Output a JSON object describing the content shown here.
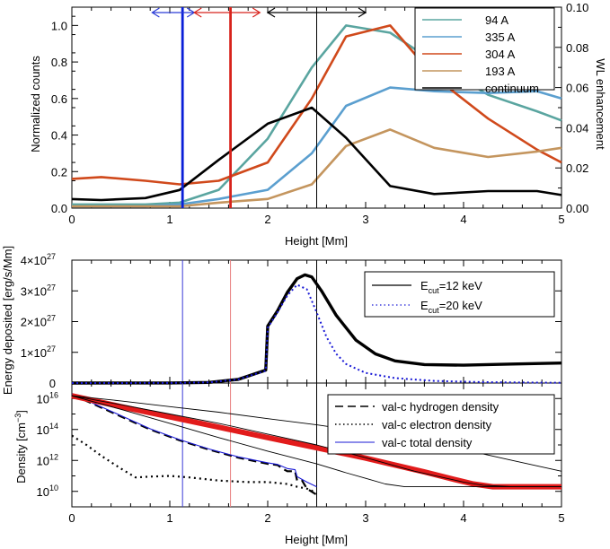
{
  "chart_data": [
    {
      "type": "line",
      "xlabel": "Height [Mm]",
      "ylabel": "Normalized counts",
      "y2label": "WL enhancement",
      "xlim": [
        0,
        5
      ],
      "ylim": [
        0,
        1.1
      ],
      "y2lim": [
        0,
        0.1
      ],
      "xticks": [
        "0",
        "1",
        "2",
        "3",
        "4",
        "5"
      ],
      "yticks": [
        "0.0",
        "0.2",
        "0.4",
        "0.6",
        "0.8",
        "1.0"
      ],
      "y2ticks": [
        "0.00",
        "0.02",
        "0.04",
        "0.06",
        "0.08",
        "0.10"
      ],
      "legend_position": "top-right",
      "series": [
        {
          "name": "94 A",
          "color": "#5aa5a0",
          "axis": "left",
          "x": [
            0,
            0.3,
            0.75,
            1.1,
            1.5,
            2.0,
            2.45,
            2.8,
            3.25,
            3.7,
            4.25,
            4.75,
            5.0
          ],
          "y": [
            0.02,
            0.02,
            0.02,
            0.03,
            0.1,
            0.38,
            0.77,
            1.0,
            0.96,
            0.8,
            0.62,
            0.53,
            0.48
          ]
        },
        {
          "name": "335 A",
          "color": "#5b9fcf",
          "axis": "left",
          "x": [
            0,
            0.3,
            0.75,
            1.1,
            1.5,
            2.0,
            2.45,
            2.8,
            3.25,
            3.7,
            4.25,
            4.75,
            5.0
          ],
          "y": [
            0.01,
            0.01,
            0.01,
            0.02,
            0.05,
            0.1,
            0.3,
            0.56,
            0.66,
            0.64,
            0.63,
            0.64,
            0.6
          ]
        },
        {
          "name": "304 A",
          "color": "#d0491b",
          "axis": "left",
          "x": [
            0,
            0.3,
            0.75,
            1.1,
            1.5,
            2.0,
            2.45,
            2.8,
            3.25,
            3.7,
            4.25,
            4.75,
            5.0
          ],
          "y": [
            0.16,
            0.17,
            0.15,
            0.13,
            0.15,
            0.25,
            0.6,
            0.94,
            1.0,
            0.72,
            0.49,
            0.32,
            0.25
          ]
        },
        {
          "name": "193 A",
          "color": "#c4955e",
          "axis": "left",
          "x": [
            0,
            0.3,
            0.75,
            1.1,
            1.5,
            2.0,
            2.45,
            2.8,
            3.25,
            3.7,
            4.25,
            4.75,
            5.0
          ],
          "y": [
            0.01,
            0.01,
            0.01,
            0.01,
            0.03,
            0.05,
            0.13,
            0.34,
            0.43,
            0.33,
            0.28,
            0.31,
            0.33
          ]
        },
        {
          "name": "continuum",
          "color": "#000000",
          "axis": "right",
          "x": [
            0,
            0.3,
            0.75,
            1.1,
            1.5,
            2.0,
            2.45,
            2.8,
            3.25,
            3.7,
            4.25,
            4.75,
            5.0
          ],
          "y": [
            0.0045,
            0.004,
            0.005,
            0.009,
            0.024,
            0.042,
            0.05,
            0.035,
            0.011,
            0.007,
            0.0085,
            0.0085,
            0.0065
          ]
        }
      ],
      "vertical_lines": [
        {
          "x": 1.13,
          "color": "#0a1fd8"
        },
        {
          "x": 1.62,
          "color": "#d8231c"
        },
        {
          "x": 2.5,
          "color": "#000000"
        }
      ],
      "arrows": [
        {
          "x1": 0.82,
          "x2": 1.25,
          "color": "#2a3bd6"
        },
        {
          "x1": 1.25,
          "x2": 1.92,
          "color": "#d8231c"
        },
        {
          "x1": 2.0,
          "x2": 3.0,
          "color": "#000000"
        }
      ]
    },
    {
      "type": "line",
      "ylabel": "Energy deposited [erg/s/Mm]",
      "xlim": [
        0,
        5
      ],
      "ylim": [
        0,
        4e+27
      ],
      "yticks": [
        {
          "mant": "0",
          "exp": ""
        },
        {
          "mant": "1×10",
          "exp": "27"
        },
        {
          "mant": "2×10",
          "exp": "27"
        },
        {
          "mant": "3×10",
          "exp": "27"
        },
        {
          "mant": "4×10",
          "exp": "27"
        }
      ],
      "legend_position": "top-right",
      "series": [
        {
          "name": "E",
          "sub": "cut",
          "suffix": "=12 keV",
          "style": "solid",
          "color": "#000000",
          "x": [
            0,
            1.0,
            1.4,
            1.7,
            1.98,
            2.0,
            2.1,
            2.2,
            2.3,
            2.38,
            2.45,
            2.55,
            2.7,
            2.9,
            3.1,
            3.3,
            3.6,
            4.0,
            4.5,
            5.0
          ],
          "y": [
            0,
            3e+24,
            2e+25,
            1.2e+26,
            4.2e+26,
            1.85e+27,
            2.35e+27,
            2.95e+27,
            3.4e+27,
            3.52e+27,
            3.45e+27,
            3e+27,
            2.2e+27,
            1.4e+27,
            9.5e+26,
            7.2e+26,
            6e+26,
            5.8e+26,
            6.2e+26,
            6.5e+26
          ]
        },
        {
          "name": "E",
          "sub": "cut",
          "suffix": "=20 keV",
          "style": "dotted",
          "color": "#1a1ad6",
          "x": [
            0,
            1.0,
            1.4,
            1.7,
            1.98,
            2.0,
            2.1,
            2.2,
            2.3,
            2.4,
            2.5,
            2.6,
            2.7,
            2.8,
            3.0,
            3.3,
            3.7,
            4.2,
            5.0
          ],
          "y": [
            0,
            3e+24,
            2e+25,
            1.2e+26,
            4e+26,
            1.8e+27,
            2.3e+27,
            2.85e+27,
            3.2e+27,
            3.05e+27,
            2.3e+27,
            1.5e+27,
            9.5e+26,
            6.2e+26,
            3.3e+26,
            1.6e+26,
            7e+25,
            3e+25,
            1e+25
          ]
        }
      ],
      "vertical_lines": [
        {
          "x": 1.13,
          "color": "#3a3ad6"
        },
        {
          "x": 1.62,
          "color": "#e87f7f"
        },
        {
          "x": 2.5,
          "color": "#000000"
        }
      ]
    },
    {
      "type": "line",
      "xlabel": "Height [Mm]",
      "ylabel": "Density [cm",
      "ylabel_sup": "−3",
      "ylabel_suffix": "]",
      "xlim": [
        0,
        5
      ],
      "ylim": [
        1000000000.0,
        1e+17
      ],
      "yscale": "log",
      "xticks": [
        "0",
        "1",
        "2",
        "3",
        "4",
        "5"
      ],
      "yticks": [
        {
          "mant": "10",
          "exp": "10",
          "value": 10000000000.0
        },
        {
          "mant": "10",
          "exp": "12",
          "value": 1000000000000.0
        },
        {
          "mant": "10",
          "exp": "14",
          "value": 100000000000000.0
        },
        {
          "mant": "10",
          "exp": "16",
          "value": 1e+16
        }
      ],
      "legend_position": "top-right",
      "series": [
        {
          "name": "val-c hydrogen density",
          "style": "dashed",
          "color": "#000000",
          "x": [
            0,
            0.2,
            0.5,
            0.8,
            1.1,
            1.4,
            1.7,
            2.0,
            2.1,
            2.15,
            2.2,
            2.28,
            2.3,
            2.35,
            2.4,
            2.5
          ],
          "y": [
            1.8e+16,
            5000000000000000.0,
            700000000000000.0,
            100000000000000.0,
            20000000000000.0,
            5000000000000.0,
            1500000000000.0,
            600000000000.0,
            500000000000.0,
            300000000000.0,
            200000000000.0,
            200000000000.0,
            50000000000.0,
            50000000000.0,
            15000000000.0,
            6000000000.0
          ]
        },
        {
          "name": "val-c electron density",
          "style": "dotted",
          "color": "#000000",
          "x": [
            0,
            0.15,
            0.3,
            0.5,
            0.65,
            0.8,
            1.0,
            1.2,
            1.5,
            1.8,
            2.0,
            2.2,
            2.3,
            2.4,
            2.5
          ],
          "y": [
            40000000000000.0,
            10000000000000.0,
            2000000000000.0,
            300000000000.0,
            80000000000.0,
            90000000000.0,
            100000000000.0,
            80000000000.0,
            50000000000.0,
            40000000000.0,
            40000000000.0,
            30000000000.0,
            20000000000.0,
            15000000000.0,
            8000000000.0
          ]
        },
        {
          "name": "val-c total density",
          "style": "solid",
          "color": "#1a1ad6",
          "x": [
            0,
            0.2,
            0.5,
            0.8,
            1.1,
            1.4,
            1.7,
            2.0,
            2.1,
            2.2,
            2.28,
            2.3,
            2.4,
            2.5
          ],
          "y": [
            2e+16,
            5500000000000000.0,
            800000000000000.0,
            110000000000000.0,
            22000000000000.0,
            5500000000000.0,
            1700000000000.0,
            700000000000.0,
            550000000000.0,
            300000000000.0,
            250000000000.0,
            90000000000.0,
            40000000000.0,
            20000000000.0
          ]
        },
        {
          "name": "",
          "style": "thick",
          "color": "#e21b1b",
          "x": [
            0,
            0.5,
            1.0,
            1.5,
            2.0,
            2.5,
            3.0,
            3.3,
            3.6,
            3.9,
            4.1,
            4.3,
            4.5,
            5.0
          ],
          "y": [
            1.5e+16,
            3000000000000000.0,
            650000000000000.0,
            140000000000000.0,
            30000000000000.0,
            6500000000000.0,
            1400000000000.0,
            500000000000.0,
            180000000000.0,
            60000000000.0,
            30000000000.0,
            20000000000.0,
            20000000000.0,
            20000000000.0
          ]
        },
        {
          "name": "",
          "style": "thin",
          "color": "#000000",
          "x": [
            0,
            0.5,
            1.0,
            1.5,
            2.0,
            2.5,
            3.0,
            3.5,
            4.0,
            4.5,
            5.0
          ],
          "y": [
            1.5e+16,
            7000000000000000.0,
            3000000000000000.0,
            1300000000000000.0,
            500000000000000.0,
            200000000000000.0,
            70000000000000.0,
            20000000000000.0,
            5000000000000.0,
            1000000000000.0,
            200000000000.0
          ]
        },
        {
          "name": "",
          "style": "thin",
          "color": "#000000",
          "x": [
            0,
            0.5,
            1.0,
            1.5,
            2.0,
            2.5,
            3.0,
            3.5,
            4.0,
            4.2,
            4.5,
            5.0
          ],
          "y": [
            1.5e+16,
            4000000000000000.0,
            1000000000000000.0,
            250000000000000.0,
            50000000000000.0,
            10000000000000.0,
            1500000000000.0,
            200000000000.0,
            40000000000.0,
            25000000000.0,
            20000000000.0,
            20000000000.0
          ]
        },
        {
          "name": "",
          "style": "thin",
          "color": "#000000",
          "x": [
            0,
            0.5,
            1.0,
            1.5,
            2.0,
            2.5,
            2.8,
            3.0,
            3.2,
            3.4,
            3.7,
            4.0,
            5.0
          ],
          "y": [
            1.5e+16,
            2000000000000000.0,
            250000000000000.0,
            30000000000000.0,
            4000000000000.0,
            600000000000.0,
            160000000000.0,
            70000000000.0,
            30000000000.0,
            20000000000.0,
            20000000000.0,
            20000000000.0,
            20000000000.0
          ]
        }
      ],
      "vertical_lines": [
        {
          "x": 1.13,
          "color": "#3a3ad6"
        },
        {
          "x": 1.62,
          "color": "#e87f7f"
        },
        {
          "x": 2.5,
          "color": "#000000"
        }
      ]
    }
  ]
}
